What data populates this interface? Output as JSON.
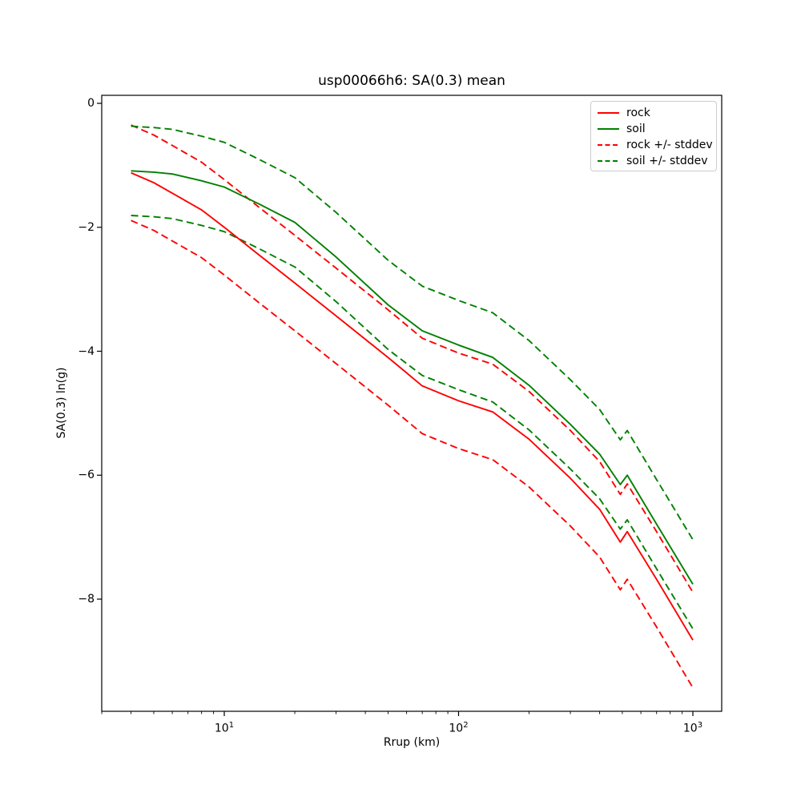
{
  "figure": {
    "title": "usp00066h6: SA(0.3) mean",
    "xlabel": "Rrup (km)",
    "ylabel": "SA(0.3) ln(g)",
    "background": "#ffffff"
  },
  "axes": {
    "x_scale": "log",
    "x_major_ticks": [
      10,
      100,
      1000
    ],
    "x_major_tick_exponents": [
      1,
      2,
      3
    ],
    "x_tick_base": "10",
    "x_minor_ticks": [
      3,
      4,
      5,
      6,
      7,
      8,
      9,
      20,
      30,
      40,
      50,
      60,
      70,
      80,
      90,
      200,
      300,
      400,
      500,
      600,
      700,
      800,
      900
    ],
    "y_major_ticks": [
      0,
      -2,
      -4,
      -6,
      -8
    ],
    "y_major_tick_labels": [
      "0",
      "−2",
      "−4",
      "−6",
      "−8"
    ]
  },
  "legend": {
    "position": "upper right",
    "items": [
      {
        "label": "rock",
        "color": "#ff0000",
        "dash": false
      },
      {
        "label": "soil",
        "color": "#008000",
        "dash": false
      },
      {
        "label": "rock +/- stddev",
        "color": "#ff0000",
        "dash": true
      },
      {
        "label": "soil +/- stddev",
        "color": "#008000",
        "dash": true
      }
    ]
  },
  "chart_data": {
    "type": "line",
    "x_scale": "log",
    "title": "usp00066h6: SA(0.3) mean",
    "xlabel": "Rrup (km)",
    "ylabel": "SA(0.3) ln(g)",
    "xlim": [
      3.0,
      1330
    ],
    "ylim": [
      -9.8,
      0.13
    ],
    "grid": false,
    "legend_position": "upper right",
    "x_km": [
      4,
      5,
      6,
      8,
      10,
      14,
      20,
      30,
      50,
      70,
      100,
      140,
      200,
      300,
      400,
      490,
      525,
      700,
      1000
    ],
    "series": [
      {
        "key": "rock",
        "name": "rock",
        "color": "#ff0000",
        "style": "solid",
        "values": [
          -1.12,
          -1.28,
          -1.45,
          -1.72,
          -2.0,
          -2.44,
          -2.9,
          -3.43,
          -4.1,
          -4.56,
          -4.8,
          -4.98,
          -5.42,
          -6.05,
          -6.55,
          -7.08,
          -6.91,
          -7.68,
          -8.66
        ]
      },
      {
        "key": "soil",
        "name": "soil",
        "color": "#008000",
        "style": "solid",
        "values": [
          -1.09,
          -1.11,
          -1.14,
          -1.25,
          -1.35,
          -1.62,
          -1.92,
          -2.48,
          -3.25,
          -3.67,
          -3.9,
          -4.1,
          -4.55,
          -5.18,
          -5.66,
          -6.15,
          -6.0,
          -6.79,
          -7.76
        ]
      },
      {
        "key": "rock-upper",
        "name": "rock + stddev",
        "color": "#ff0000",
        "style": "dashed",
        "values": [
          -0.35,
          -0.51,
          -0.68,
          -0.95,
          -1.23,
          -1.67,
          -2.13,
          -2.66,
          -3.33,
          -3.79,
          -4.03,
          -4.21,
          -4.65,
          -5.28,
          -5.78,
          -6.31,
          -6.14,
          -6.91,
          -7.89
        ]
      },
      {
        "key": "rock-lower",
        "name": "rock - stddev",
        "color": "#ff0000",
        "style": "dashed",
        "values": [
          -1.89,
          -2.05,
          -2.22,
          -2.49,
          -2.77,
          -3.21,
          -3.67,
          -4.2,
          -4.87,
          -5.33,
          -5.57,
          -5.75,
          -6.19,
          -6.82,
          -7.32,
          -7.85,
          -7.68,
          -8.45,
          -9.43
        ]
      },
      {
        "key": "soil-upper",
        "name": "soil + stddev",
        "color": "#008000",
        "style": "dashed",
        "values": [
          -0.37,
          -0.39,
          -0.42,
          -0.53,
          -0.63,
          -0.9,
          -1.2,
          -1.76,
          -2.53,
          -2.95,
          -3.18,
          -3.38,
          -3.83,
          -4.46,
          -4.94,
          -5.43,
          -5.28,
          -6.07,
          -7.04
        ]
      },
      {
        "key": "soil-lower",
        "name": "soil - stddev",
        "color": "#008000",
        "style": "dashed",
        "values": [
          -1.81,
          -1.83,
          -1.86,
          -1.97,
          -2.07,
          -2.34,
          -2.64,
          -3.2,
          -3.97,
          -4.39,
          -4.62,
          -4.82,
          -5.27,
          -5.9,
          -6.38,
          -6.87,
          -6.72,
          -7.51,
          -8.48
        ]
      }
    ]
  }
}
